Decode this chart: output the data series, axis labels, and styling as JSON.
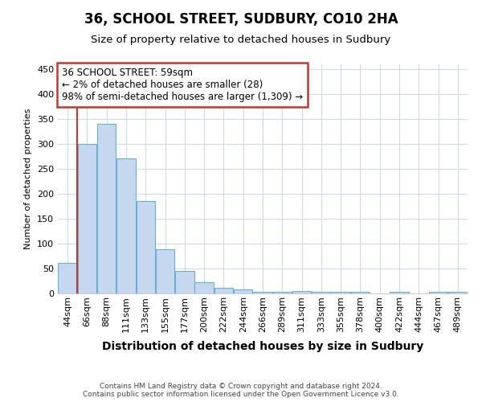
{
  "title": "36, SCHOOL STREET, SUDBURY, CO10 2HA",
  "subtitle": "Size of property relative to detached houses in Sudbury",
  "xlabel": "Distribution of detached houses by size in Sudbury",
  "ylabel": "Number of detached properties",
  "footer_line1": "Contains HM Land Registry data © Crown copyright and database right 2024.",
  "footer_line2": "Contains public sector information licensed under the Open Government Licence v3.0.",
  "annotation_line1": "36 SCHOOL STREET: 59sqm",
  "annotation_line2": "← 2% of detached houses are smaller (28)",
  "annotation_line3": "98% of semi-detached houses are larger (1,309) →",
  "bar_labels": [
    "44sqm",
    "66sqm",
    "88sqm",
    "111sqm",
    "133sqm",
    "155sqm",
    "177sqm",
    "200sqm",
    "222sqm",
    "244sqm",
    "266sqm",
    "289sqm",
    "311sqm",
    "333sqm",
    "355sqm",
    "378sqm",
    "400sqm",
    "422sqm",
    "444sqm",
    "467sqm",
    "489sqm"
  ],
  "bar_values": [
    62,
    301,
    340,
    271,
    185,
    88,
    45,
    23,
    12,
    8,
    4,
    4,
    5,
    4,
    4,
    3,
    0,
    3,
    0,
    3,
    3
  ],
  "bar_color": "#c5d8f0",
  "bar_edge_color": "#6aaed6",
  "vline_color": "#c0392b",
  "annotation_box_color": "#c0392b",
  "ylim": [
    0,
    460
  ],
  "yticks": [
    0,
    50,
    100,
    150,
    200,
    250,
    300,
    350,
    400,
    450
  ],
  "bg_color": "#ffffff",
  "grid_color": "#ccdaea",
  "title_fontsize": 12,
  "subtitle_fontsize": 9.5,
  "xlabel_fontsize": 10,
  "ylabel_fontsize": 8,
  "tick_fontsize": 8,
  "annotation_fontsize": 8.5,
  "footer_fontsize": 6.5
}
